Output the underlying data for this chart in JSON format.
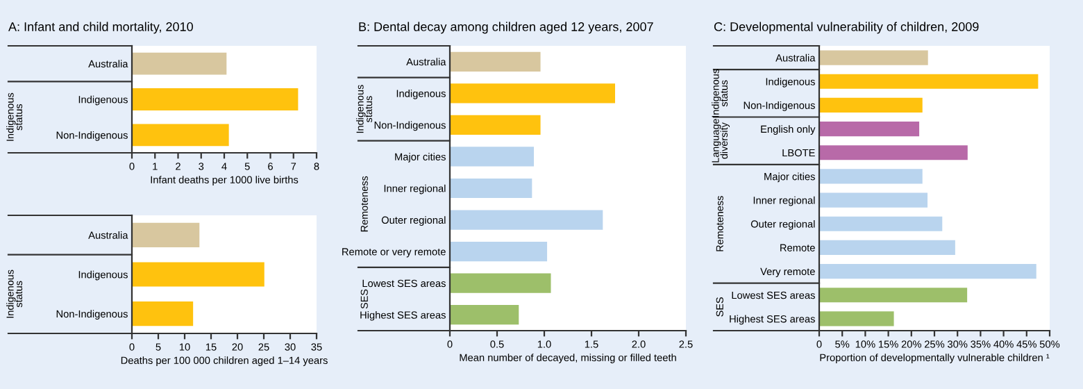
{
  "chart_data": [
    {
      "type": "bar",
      "orientation": "horizontal",
      "title": "A: Infant and child mortality, 2010",
      "xlabel": "Infant deaths per 1000 live births",
      "categories": [
        "Australia",
        "Indigenous",
        "Non-Indigenous"
      ],
      "values": [
        4.1,
        7.2,
        4.2
      ],
      "colors": [
        "#d8c79f",
        "#ffc20e",
        "#ffc20e"
      ],
      "xlim": [
        0,
        8
      ],
      "xticks": [
        0,
        1,
        2,
        3,
        4,
        5,
        6,
        7,
        8
      ],
      "grid": false,
      "annotations": [
        "Indigenous\nstatus"
      ]
    },
    {
      "type": "bar",
      "orientation": "horizontal",
      "xlabel": "Deaths per 100 000 children aged 1–14 years",
      "categories": [
        "Australia",
        "Indigenous",
        "Non-Indigenous"
      ],
      "values": [
        12.8,
        25.1,
        11.6
      ],
      "colors": [
        "#d8c79f",
        "#ffc20e",
        "#ffc20e"
      ],
      "xlim": [
        0,
        35
      ],
      "xticks": [
        0,
        5,
        10,
        15,
        20,
        25,
        30,
        35
      ],
      "grid": false,
      "annotations": [
        "Indigenous\nstatus"
      ]
    },
    {
      "type": "bar",
      "orientation": "horizontal",
      "title": "B: Dental decay among children aged 12 years, 2007",
      "xlabel": "Mean number of decayed, missing or filled teeth",
      "categories": [
        "Australia",
        "Indigenous",
        "Non-Indigenous",
        "Major cities",
        "Inner regional",
        "Outer regional",
        "Remote or very remote",
        "Lowest SES areas",
        "Highest SES areas"
      ],
      "values": [
        0.96,
        1.75,
        0.96,
        0.89,
        0.87,
        1.62,
        1.03,
        1.07,
        0.73
      ],
      "colors": [
        "#d8c79f",
        "#ffc20e",
        "#ffc20e",
        "#b9d4ee",
        "#b9d4ee",
        "#b9d4ee",
        "#b9d4ee",
        "#9dbf6a",
        "#9dbf6a"
      ],
      "xlim": [
        0,
        2.5
      ],
      "xticks": [
        0,
        0.5,
        {
          "value": 1,
          "label": "1.0"
        },
        1.5,
        {
          "value": 2,
          "label": "2.0"
        },
        2.5
      ],
      "grid": false,
      "annotations": [
        "Indigenous\nstatus",
        "Remoteness",
        "SES"
      ]
    },
    {
      "type": "bar",
      "orientation": "horizontal",
      "title": "C: Developmental vulnerability of children, 2009",
      "xlabel": "Proportion of developmentally vulnerable children ¹",
      "categories": [
        "Australia",
        "Indigenous",
        "Non-Indigenous",
        "English only",
        "LBOTE",
        "Major cities",
        "Inner regional",
        "Outer regional",
        "Remote",
        "Very remote",
        "Lowest SES areas",
        "Highest SES areas"
      ],
      "values": [
        23.6,
        47.5,
        22.4,
        21.7,
        32.2,
        22.4,
        23.5,
        26.7,
        29.5,
        47.1,
        32.1,
        16.2
      ],
      "colors": [
        "#d8c79f",
        "#ffc20e",
        "#ffc20e",
        "#b86aa8",
        "#b86aa8",
        "#b9d4ee",
        "#b9d4ee",
        "#b9d4ee",
        "#b9d4ee",
        "#b9d4ee",
        "#9dbf6a",
        "#9dbf6a"
      ],
      "xlim": [
        0,
        50
      ],
      "xticks": [
        0,
        {
          "value": 5,
          "label": "5%"
        },
        {
          "value": 10,
          "label": "10%"
        },
        {
          "value": 15,
          "label": "15%"
        },
        {
          "value": 20,
          "label": "20%"
        },
        {
          "value": 25,
          "label": "25%"
        },
        {
          "value": 30,
          "label": "30%"
        },
        {
          "value": 35,
          "label": "35%"
        },
        {
          "value": 40,
          "label": "40%"
        },
        {
          "value": 45,
          "label": "45%"
        },
        {
          "value": 50,
          "label": "50%"
        }
      ],
      "grid": false,
      "annotations": [
        "Indigenous\nstatus",
        "Language\ndiversity",
        "Remoteness",
        "SES"
      ]
    }
  ]
}
